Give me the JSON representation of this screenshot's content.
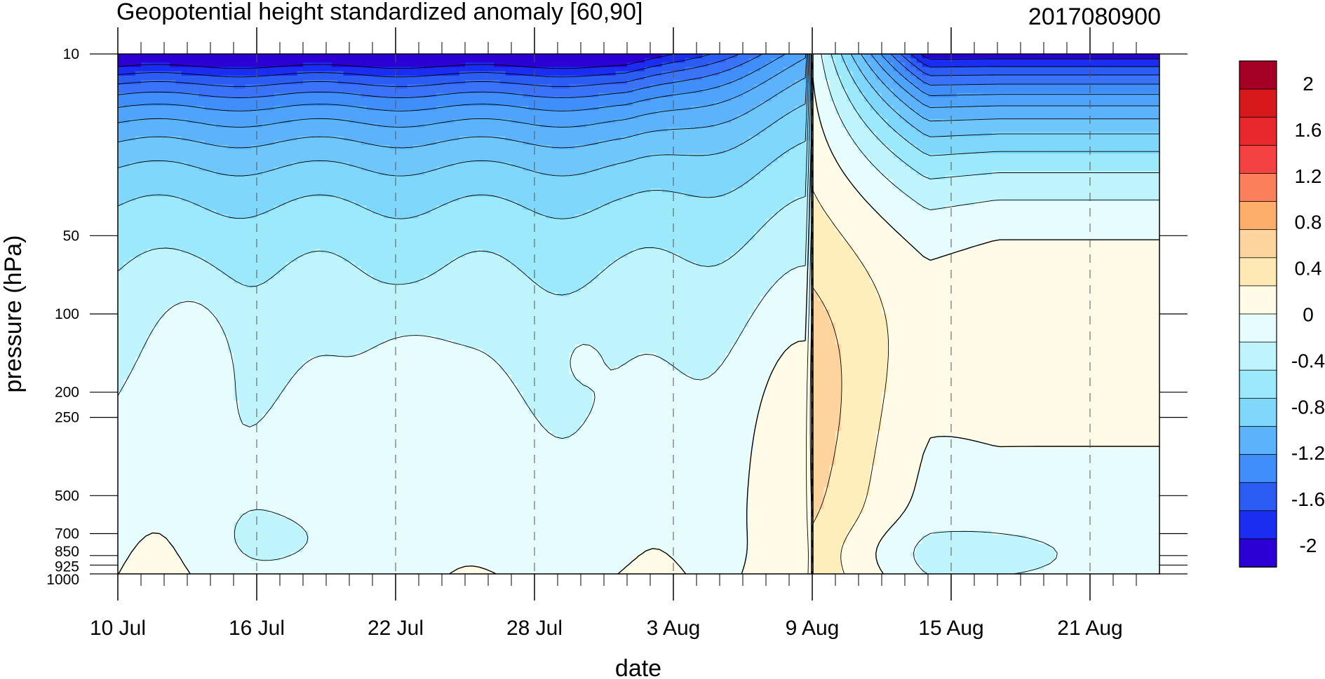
{
  "chart_data": {
    "type": "heatmap",
    "title": "Geopotential height standardized anomaly [60,90]",
    "date_stamp": "2017080900",
    "xlabel": "date",
    "ylabel": "pressure (hPa)",
    "x_ticks": [
      "10 Jul",
      "16 Jul",
      "22 Jul",
      "28 Jul",
      "3 Aug",
      "9 Aug",
      "15 Aug",
      "21 Aug"
    ],
    "x_tick_day_offsets": [
      0,
      6,
      12,
      18,
      24,
      30,
      36,
      42
    ],
    "x_range_days": [
      0,
      45
    ],
    "y_ticks": [
      "10",
      "50",
      "100",
      "200",
      "250",
      "500",
      "700",
      "850",
      "925",
      "1000"
    ],
    "y_tick_values_hpa": [
      10,
      50,
      100,
      200,
      250,
      500,
      700,
      850,
      925,
      1000
    ],
    "y_scale": "log",
    "y_range_hpa": [
      10,
      1000
    ],
    "marker_line_date": "9 Aug",
    "colorbar": {
      "labels": [
        "2",
        "1.6",
        "1.2",
        "0.8",
        "0.4",
        "0",
        "-0.4",
        "-0.8",
        "-1.2",
        "-1.6",
        "-2"
      ],
      "colors": [
        "#a50026",
        "#d7191c",
        "#e8282d",
        "#f44141",
        "#fc7f5b",
        "#fdae6b",
        "#fdd49e",
        "#fee8b4",
        "#fffbe6",
        "#e6fcfd",
        "#bff4fc",
        "#9be9fb",
        "#7fd7fb",
        "#5db3fb",
        "#3f8ef9",
        "#2b5cf4",
        "#1a2df0",
        "#2a00d5"
      ]
    },
    "anomaly_levels": [
      -2.2,
      -2.0,
      -1.8,
      -1.6,
      -1.4,
      -1.2,
      -1.0,
      -0.8,
      -0.6,
      -0.4,
      -0.2,
      0.0,
      0.2,
      0.4
    ]
  }
}
